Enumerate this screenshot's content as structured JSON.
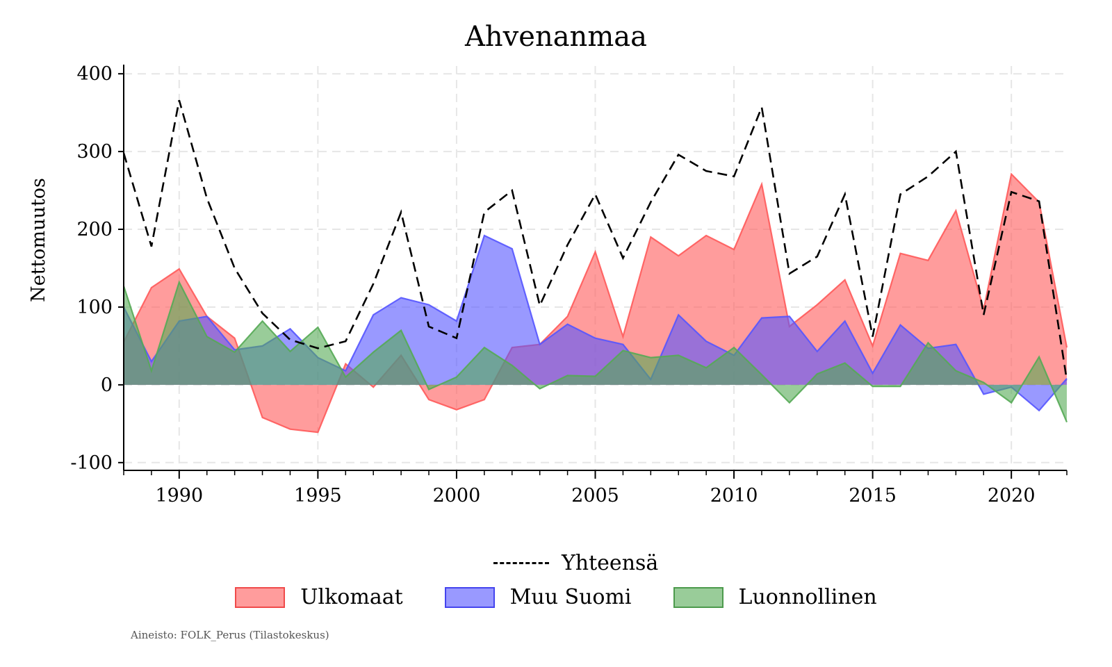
{
  "chart_data": {
    "type": "area",
    "title": "Ahvenanmaa",
    "ylabel": "Nettomuutos",
    "xlabel": "",
    "xlim": [
      1988,
      2022
    ],
    "ylim": [
      -110,
      410
    ],
    "xticks": [
      1990,
      1995,
      2000,
      2005,
      2010,
      2015,
      2020
    ],
    "yticks": [
      -100,
      0,
      100,
      200,
      300,
      400
    ],
    "ytick_labels": [
      "-100",
      "0",
      "100",
      "200",
      "300",
      "400"
    ],
    "grid": true,
    "legend_position": "bottom",
    "x": [
      1988,
      1989,
      1990,
      1991,
      1992,
      1993,
      1994,
      1995,
      1996,
      1997,
      1998,
      1999,
      2000,
      2001,
      2002,
      2003,
      2004,
      2005,
      2006,
      2007,
      2008,
      2009,
      2010,
      2011,
      2012,
      2013,
      2014,
      2015,
      2016,
      2017,
      2018,
      2019,
      2020,
      2021,
      2022
    ],
    "series": [
      {
        "name": "Ulkomaat",
        "kind": "area",
        "color": "#ff5a5a",
        "values": [
          55,
          125,
          149,
          88,
          60,
          -42,
          -57,
          -61,
          27,
          -3,
          38,
          -19,
          -32,
          -19,
          48,
          52,
          88,
          171,
          62,
          190,
          166,
          192,
          174,
          258,
          75,
          103,
          135,
          50,
          169,
          160,
          224,
          97,
          271,
          235,
          48
        ]
      },
      {
        "name": "Muu Suomi",
        "kind": "area",
        "color": "#5555ff",
        "values": [
          100,
          30,
          82,
          88,
          45,
          50,
          72,
          35,
          18,
          90,
          112,
          103,
          82,
          192,
          175,
          52,
          78,
          60,
          52,
          7,
          90,
          56,
          38,
          86,
          88,
          43,
          82,
          15,
          77,
          47,
          52,
          -12,
          -3,
          -33,
          8
        ]
      },
      {
        "name": "Luonnollinen",
        "kind": "area",
        "color": "#55aa55",
        "values": [
          127,
          18,
          132,
          62,
          42,
          82,
          43,
          74,
          10,
          42,
          70,
          -6,
          10,
          48,
          25,
          -5,
          12,
          11,
          44,
          35,
          38,
          22,
          48,
          13,
          -23,
          14,
          28,
          -2,
          -2,
          54,
          18,
          3,
          -23,
          36,
          -48
        ]
      },
      {
        "name": "Yhteensä",
        "kind": "line",
        "color": "#000000",
        "values": [
          298,
          178,
          366,
          240,
          150,
          92,
          58,
          47,
          56,
          130,
          222,
          75,
          60,
          222,
          250,
          102,
          180,
          245,
          163,
          235,
          296,
          275,
          268,
          357,
          143,
          165,
          245,
          62,
          245,
          268,
          300,
          90,
          248,
          236,
          6
        ]
      }
    ]
  },
  "source_note": "Aineisto: FOLK_Perus (Tilastokeskus)"
}
